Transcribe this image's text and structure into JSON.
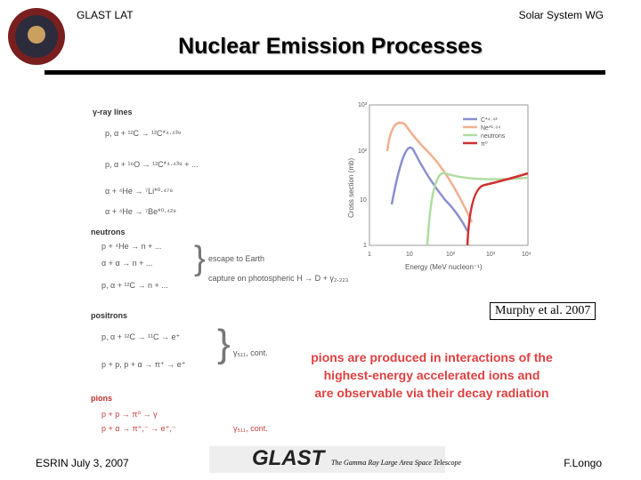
{
  "header": {
    "left": "GLAST LAT",
    "right": "Solar System WG",
    "title": "Nuclear Emission Processes"
  },
  "reactions": {
    "gamma": {
      "heading": "γ-ray lines",
      "lines": [
        "p, α + ¹²C → ¹²C*⁴·⁴³⁹",
        "p, α + ¹⁶O → ¹²C*⁴·⁴³⁹ + ...",
        "α + ⁴He → ⁷Li*⁰·⁴⁷⁸",
        "α + ⁴He → ⁷Be*⁰·⁴²⁹"
      ]
    },
    "neutrons": {
      "heading": "neutrons",
      "lines": [
        "p + ⁴He → n + ...",
        "α + α → n + ...",
        "p, α + ¹²C → n + ..."
      ],
      "fates": [
        "escape to Earth",
        "capture on photospheric H → D + γ₂.₂₂₃"
      ]
    },
    "positrons": {
      "heading": "positrons",
      "lines": [
        "p, α + ¹²C → ¹¹C → e⁺",
        "p + p, p + α → π⁺ → e⁺"
      ],
      "result": "γ₅₁₁, cont."
    },
    "pions": {
      "heading": "pions",
      "lines": [
        "p + p → π⁰ → γ",
        "p + α → π⁺,⁻ → e⁺,⁻"
      ],
      "result": "γ₅₁₁, cont."
    }
  },
  "figure": {
    "y_label": "Cross section (mb)",
    "x_label": "Energy (MeV nucleon⁻¹)",
    "y_ticks": [
      "10³",
      "10²",
      "10",
      "1"
    ],
    "x_ticks": [
      "1",
      "10",
      "10²",
      "10³",
      "10⁴"
    ],
    "legend": [
      "C*⁴·⁴³",
      "Ne*¹·⁶⁴",
      "neutrons",
      "π⁰"
    ]
  },
  "citation": "Murphy et al. 2007",
  "note": [
    "pions are produced in interactions of the",
    "highest-energy accelerated ions and",
    "are observable via their decay radiation"
  ],
  "footer": {
    "left": "ESRIN July 3, 2007",
    "logo": "GLAST",
    "tagline": "The Gamma Ray Large Area Space Telescope",
    "right": "F.Longo"
  }
}
